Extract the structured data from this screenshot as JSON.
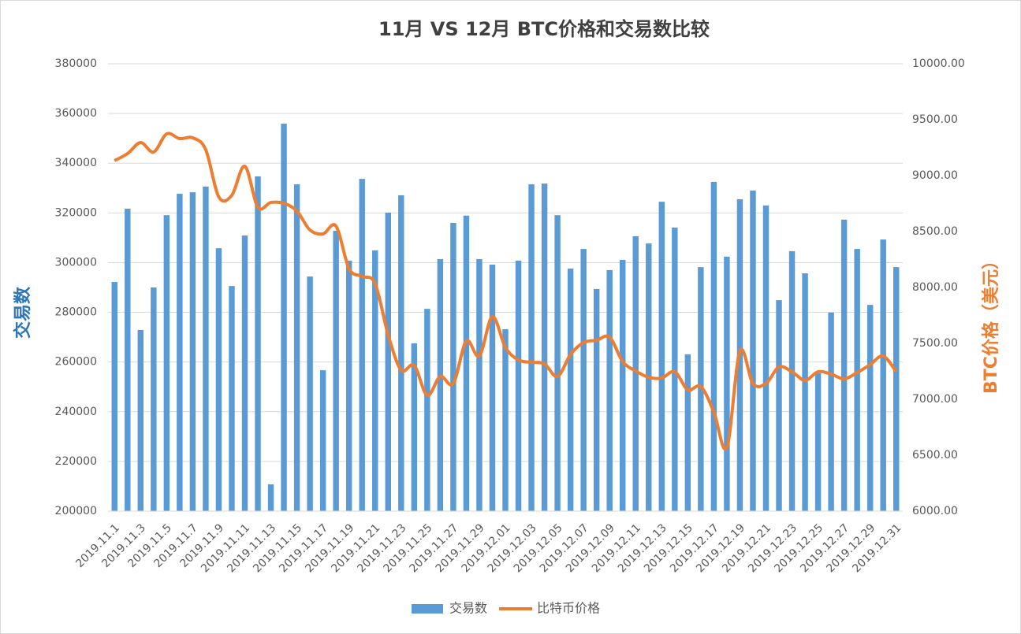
{
  "chart_data": {
    "type": "bar_line",
    "title": "11月 VS 12月 BTC价格和交易数比较",
    "y_label": "交易数",
    "y2_label": "BTC价格（美元）",
    "categories": [
      "2019.11.1",
      null,
      "2019.11.3",
      null,
      "2019.11.5",
      null,
      "2019.11.7",
      null,
      "2019.11.9",
      null,
      "2019.11.11",
      null,
      "2019.11.13",
      null,
      "2019.11.15",
      null,
      "2019.11.17",
      null,
      "2019.11.19",
      null,
      "2019.11.21",
      null,
      "2019.11.23",
      null,
      "2019.11.25",
      null,
      "2019.11.27",
      null,
      "2019.11.29",
      null,
      "2019.12.01",
      null,
      "2019.12.03",
      null,
      "2019.12.05",
      null,
      "2019.12.07",
      null,
      "2019.12.09",
      null,
      "2019.12.11",
      null,
      "2019.12.13",
      null,
      "2019.12.15",
      null,
      "2019.12.17",
      null,
      "2019.12.19",
      null,
      "2019.12.21",
      null,
      "2019.12.23",
      null,
      "2019.12.25",
      null,
      "2019.12.27",
      null,
      "2019.12.29",
      null,
      "2019.12.31"
    ],
    "series": [
      {
        "name": "交易数",
        "type": "bar",
        "color": "#5b9bd5",
        "axis": "y",
        "values": [
          292200,
          321700,
          272900,
          290000,
          319100,
          327700,
          328300,
          330600,
          305800,
          290600,
          310900,
          334700,
          210800,
          355900,
          331500,
          294400,
          256700,
          312800,
          300800,
          333700,
          304900,
          320100,
          327100,
          267500,
          281400,
          301400,
          316000,
          318900,
          301400,
          299200,
          273200,
          300800,
          331500,
          331800,
          319100,
          297600,
          305500,
          289400,
          297000,
          301100,
          310600,
          307700,
          324500,
          314100,
          263100,
          298200,
          332500,
          302400,
          325500,
          329000,
          323000,
          284900,
          304600,
          295700,
          255500,
          279900,
          317300,
          305500,
          283000,
          309300,
          298200
        ]
      },
      {
        "name": "比特币价格",
        "type": "line",
        "color": "#ed7d31",
        "axis": "y2",
        "values": [
          9134,
          9197,
          9296,
          9211,
          9373,
          9331,
          9338,
          9232,
          8810,
          8824,
          9084,
          8718,
          8760,
          8753,
          8683,
          8514,
          8479,
          8549,
          8169,
          8099,
          8035,
          7577,
          7261,
          7303,
          7035,
          7204,
          7141,
          7521,
          7387,
          7739,
          7465,
          7352,
          7331,
          7317,
          7204,
          7401,
          7507,
          7528,
          7556,
          7338,
          7253,
          7197,
          7190,
          7246,
          7085,
          7113,
          6887,
          6570,
          7430,
          7141,
          7141,
          7289,
          7246,
          7169,
          7246,
          7225,
          7183,
          7239,
          7310,
          7387,
          7246
        ]
      }
    ],
    "ylim": [
      200000,
      380000
    ],
    "yticks": [
      200000,
      220000,
      240000,
      260000,
      280000,
      300000,
      320000,
      340000,
      360000,
      380000
    ],
    "y2lim": [
      6000,
      10000
    ],
    "y2ticks": [
      {
        "value": 6000,
        "label": "6000.00"
      },
      {
        "value": 6500,
        "label": "6500.00"
      },
      {
        "value": 7000,
        "label": "7000.00"
      },
      {
        "value": 7500,
        "label": "7500.00"
      },
      {
        "value": 8000,
        "label": "8000.00"
      },
      {
        "value": 8500,
        "label": "8500.00"
      },
      {
        "value": 9000,
        "label": "9000.00"
      },
      {
        "value": 9500,
        "label": "9500.00"
      },
      {
        "value": 10000,
        "label": "10000.00"
      }
    ],
    "grid": true,
    "legend": "bottom"
  }
}
